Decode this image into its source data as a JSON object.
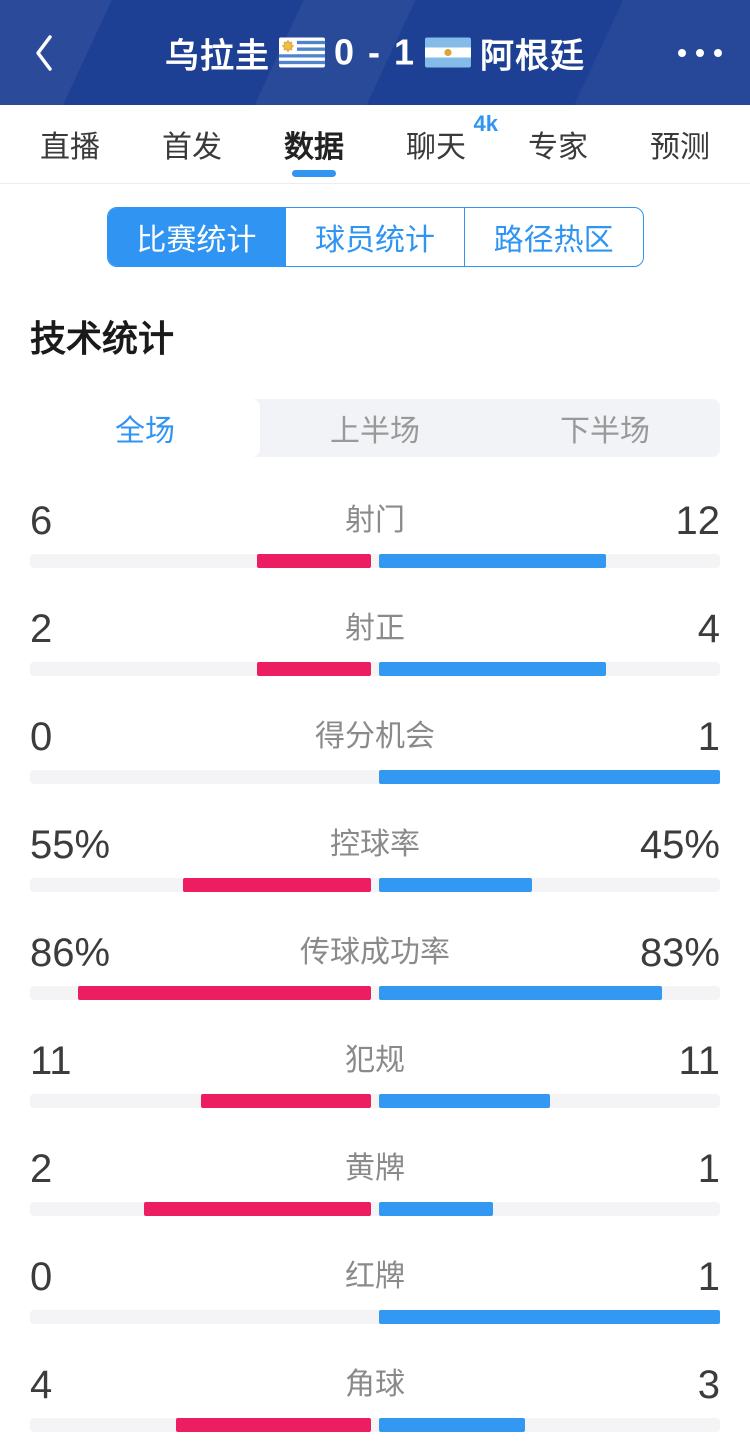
{
  "header": {
    "home_team": "乌拉圭",
    "score": "0 - 1",
    "away_team": "阿根廷"
  },
  "tabs": [
    {
      "label": "直播",
      "active": false
    },
    {
      "label": "首发",
      "active": false
    },
    {
      "label": "数据",
      "active": true
    },
    {
      "label": "聊天",
      "active": false,
      "badge": "4k"
    },
    {
      "label": "专家",
      "active": false
    },
    {
      "label": "预测",
      "active": false
    }
  ],
  "subtabs": [
    {
      "label": "比赛统计",
      "active": true
    },
    {
      "label": "球员统计",
      "active": false
    },
    {
      "label": "路径热区",
      "active": false
    }
  ],
  "section_title": "技术统计",
  "period_tabs": [
    {
      "label": "全场",
      "active": true
    },
    {
      "label": "上半场",
      "active": false
    },
    {
      "label": "下半场",
      "active": false
    }
  ],
  "chart_data": {
    "type": "bar",
    "title": "技术统计 全场",
    "series_names": [
      "乌拉圭",
      "阿根廷"
    ],
    "rows": "see stats"
  },
  "stats": [
    {
      "label": "射门",
      "home": "6",
      "away": "12"
    },
    {
      "label": "射正",
      "home": "2",
      "away": "4"
    },
    {
      "label": "得分机会",
      "home": "0",
      "away": "1"
    },
    {
      "label": "控球率",
      "home": "55%",
      "away": "45%"
    },
    {
      "label": "传球成功率",
      "home": "86%",
      "away": "83%"
    },
    {
      "label": "犯规",
      "home": "11",
      "away": "11"
    },
    {
      "label": "黄牌",
      "home": "2",
      "away": "1"
    },
    {
      "label": "红牌",
      "home": "0",
      "away": "1"
    },
    {
      "label": "角球",
      "home": "4",
      "away": "3"
    }
  ],
  "colors": {
    "header_bg": "#1e4094",
    "accent": "#3095f2",
    "home_bar": "#ec1d60",
    "away_bar": "#3398f2",
    "bar_track": "#f4f4f6"
  }
}
